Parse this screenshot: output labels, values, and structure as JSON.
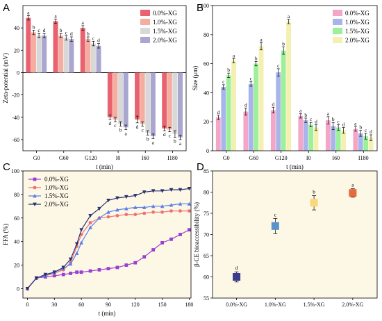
{
  "figure": {
    "panels": [
      {
        "letter": "A"
      },
      {
        "letter": "B"
      },
      {
        "letter": "C"
      },
      {
        "letter": "D"
      }
    ]
  },
  "chart_data": [
    {
      "panel": "A",
      "type": "bar",
      "xlabel": "t (min)",
      "ylabel": "Zeta-potential (mV)",
      "ylim": [
        -70,
        60
      ],
      "yticks": [
        -60,
        -40,
        -20,
        0,
        20,
        40
      ],
      "categories": [
        "G0",
        "G60",
        "G120",
        "I0",
        "I60",
        "I180"
      ],
      "legend_position": "top-right",
      "series": [
        {
          "name": "0.0%-XG",
          "color": "#e8626f",
          "values": [
            49,
            46,
            40,
            -40,
            -42,
            -50
          ],
          "errors": [
            2,
            2,
            2,
            2,
            3,
            2
          ],
          "letters": [
            "a",
            "a",
            "a",
            "d",
            "d",
            "d"
          ]
        },
        {
          "name": "1.0%-XG",
          "color": "#f5ada0",
          "values": [
            36,
            33,
            30,
            -42,
            -46,
            -51
          ],
          "errors": [
            2,
            2,
            2,
            2,
            2,
            2
          ],
          "letters": [
            "b",
            "b",
            "b",
            "c",
            "c",
            "c"
          ]
        },
        {
          "name": "1.5%-XG",
          "color": "#d8d8d8",
          "values": [
            33,
            31,
            26,
            -46,
            -54,
            -55
          ],
          "errors": [
            2,
            2,
            2,
            2,
            2,
            3
          ],
          "letters": [
            "c",
            "c",
            "c",
            "b",
            "b",
            "b"
          ]
        },
        {
          "name": "2.0%-XG",
          "color": "#a9a6cf",
          "values": [
            33,
            30,
            24,
            -49,
            -57,
            -58
          ],
          "errors": [
            2,
            2,
            2,
            2,
            2,
            2
          ],
          "letters": [
            "d",
            "d",
            "d",
            "a",
            "a",
            "a"
          ]
        }
      ]
    },
    {
      "panel": "B",
      "type": "bar",
      "xlabel": "t (min)",
      "ylabel": "Size (μm)",
      "ylim": [
        0,
        100
      ],
      "yticks": [
        0,
        20,
        40,
        60,
        80,
        100
      ],
      "categories": [
        "G0",
        "G60",
        "G120",
        "I0",
        "I60",
        "I180"
      ],
      "legend_position": "top-right",
      "series": [
        {
          "name": "0.0%-XG",
          "color": "#f3a6c8",
          "values": [
            23,
            27,
            28,
            24,
            21,
            15
          ],
          "errors": [
            1.5,
            2.5,
            2,
            1.5,
            2.5,
            1.5
          ],
          "letters": [
            "d",
            "d",
            "d",
            "a",
            "a",
            "a"
          ]
        },
        {
          "name": "1.0%-XG",
          "color": "#a9b4ea",
          "values": [
            44,
            46,
            54,
            21,
            17,
            12
          ],
          "errors": [
            1.5,
            1.5,
            2.5,
            1.5,
            2.5,
            2
          ],
          "letters": [
            "c",
            "c",
            "c",
            "b",
            "b",
            "b"
          ]
        },
        {
          "name": "1.5%-XG",
          "color": "#9cf09c",
          "values": [
            52,
            60,
            69,
            18,
            16,
            10
          ],
          "errors": [
            1.5,
            1.5,
            2.5,
            1.5,
            2,
            2
          ],
          "letters": [
            "b",
            "b",
            "b",
            "c",
            "c",
            "c"
          ]
        },
        {
          "name": "2.0%-XG",
          "color": "#f4f0b0",
          "values": [
            62,
            72,
            89,
            16,
            14,
            9
          ],
          "errors": [
            1.5,
            2.5,
            1.5,
            2,
            2,
            2
          ],
          "letters": [
            "a",
            "a",
            "a",
            "d",
            "d",
            "d"
          ]
        }
      ]
    },
    {
      "panel": "C",
      "type": "line",
      "xlabel": "t (min)",
      "ylabel": "FFA (%)",
      "xlim": [
        -5,
        182
      ],
      "ylim": [
        -8,
        100
      ],
      "xticks": [
        0,
        30,
        60,
        90,
        120,
        150,
        180
      ],
      "yticks": [
        0,
        20,
        40,
        60,
        80,
        100
      ],
      "legend_position": "top-left",
      "x": [
        0,
        10,
        20,
        30,
        40,
        48,
        55,
        60,
        70,
        80,
        90,
        100,
        110,
        120,
        130,
        140,
        150,
        160,
        170,
        180
      ],
      "series": [
        {
          "name": "0.0%-XG",
          "color": "#9a3fd0",
          "marker": "square",
          "values": [
            0,
            9,
            10,
            11,
            12,
            13,
            14,
            14,
            15,
            16,
            17,
            18,
            20,
            22,
            27,
            33,
            39,
            42,
            46,
            50
          ]
        },
        {
          "name": "1.0%-XG",
          "color": "#f07070",
          "marker": "circle",
          "values": [
            0,
            9,
            11,
            13,
            16,
            22,
            36,
            46,
            56,
            60,
            61,
            62,
            63,
            63,
            64,
            65,
            65,
            66,
            66,
            66
          ]
        },
        {
          "name": "1.5%-XG",
          "color": "#5b7fe8",
          "marker": "triangle-up",
          "values": [
            0,
            9,
            11,
            14,
            17,
            21,
            30,
            39,
            52,
            60,
            65,
            67,
            68,
            69,
            69,
            70,
            70,
            71,
            72,
            72
          ]
        },
        {
          "name": "2.0%-XG",
          "color": "#2a3070",
          "marker": "triangle-down",
          "values": [
            0,
            9,
            12,
            14,
            18,
            25,
            38,
            50,
            62,
            68,
            75,
            77,
            78,
            79,
            82,
            83,
            83,
            84,
            84,
            85
          ]
        }
      ]
    },
    {
      "panel": "D",
      "type": "scatter",
      "xlabel": "",
      "ylabel": "β-CE bioaccessibility (%)",
      "ylim": [
        55,
        85
      ],
      "yticks": [
        55,
        60,
        65,
        70,
        75,
        80,
        85
      ],
      "categories": [
        "0.0%-XG",
        "1.0%-XG",
        "1.5%-XG",
        "2.0%-XG"
      ],
      "values": [
        60,
        72,
        77.5,
        79.8
      ],
      "errors": [
        1.2,
        1.8,
        1.7,
        1.0
      ],
      "letters": [
        "d",
        "c",
        "b",
        "a"
      ],
      "colors": [
        "#3a3c8c",
        "#5a93cc",
        "#f7d97a",
        "#e66a3a"
      ]
    }
  ]
}
